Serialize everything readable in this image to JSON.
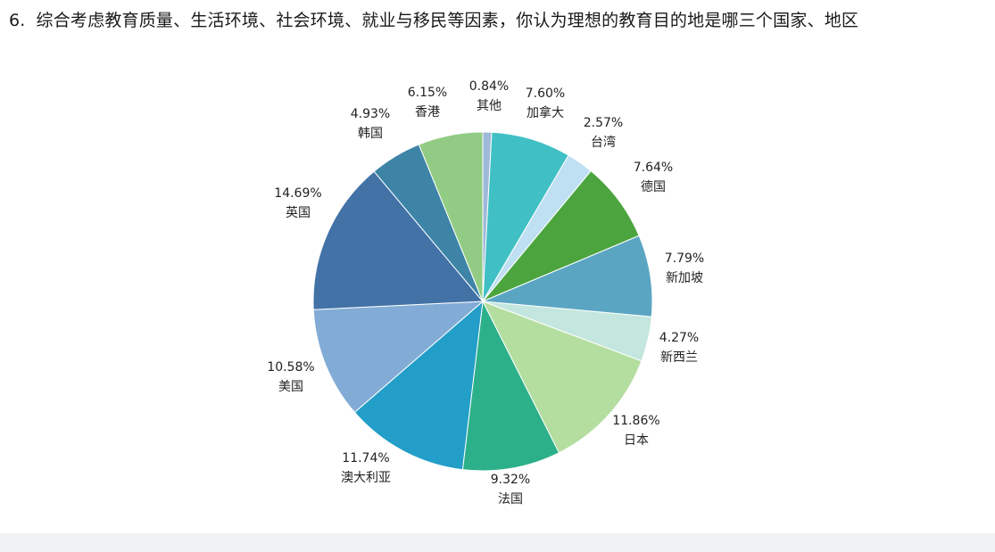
{
  "question": {
    "number": "6.",
    "text": "综合考虑教育质量、生活环境、社会环境、就业与移民等因素，你认为理想的教育目的地是哪三个国家、地区"
  },
  "chart_data": {
    "type": "pie",
    "title": "",
    "slices": [
      {
        "label": "其他",
        "value": 0.84,
        "display": "0.84%",
        "color": "#9fb9d8"
      },
      {
        "label": "加拿大",
        "value": 7.6,
        "display": "7.60%",
        "color": "#40c0c4"
      },
      {
        "label": "台湾",
        "value": 2.57,
        "display": "2.57%",
        "color": "#bfe0f2"
      },
      {
        "label": "德国",
        "value": 7.64,
        "display": "7.64%",
        "color": "#4ca43e"
      },
      {
        "label": "新加坡",
        "value": 7.79,
        "display": "7.79%",
        "color": "#5aa6c2"
      },
      {
        "label": "新西兰",
        "value": 4.27,
        "display": "4.27%",
        "color": "#c3e6de"
      },
      {
        "label": "日本",
        "value": 11.86,
        "display": "11.86%",
        "color": "#b4dea0"
      },
      {
        "label": "法国",
        "value": 9.32,
        "display": "9.32%",
        "color": "#2cb08a"
      },
      {
        "label": "澳大利亚",
        "value": 11.74,
        "display": "11.74%",
        "color": "#229ec8"
      },
      {
        "label": "美国",
        "value": 10.58,
        "display": "10.58%",
        "color": "#82acd6"
      },
      {
        "label": "英国",
        "value": 14.69,
        "display": "14.69%",
        "color": "#4272a6"
      },
      {
        "label": "韩国",
        "value": 4.93,
        "display": "4.93%",
        "color": "#3d84a6"
      },
      {
        "label": "香港",
        "value": 6.15,
        "display": "6.15%",
        "color": "#92cc84"
      }
    ]
  }
}
